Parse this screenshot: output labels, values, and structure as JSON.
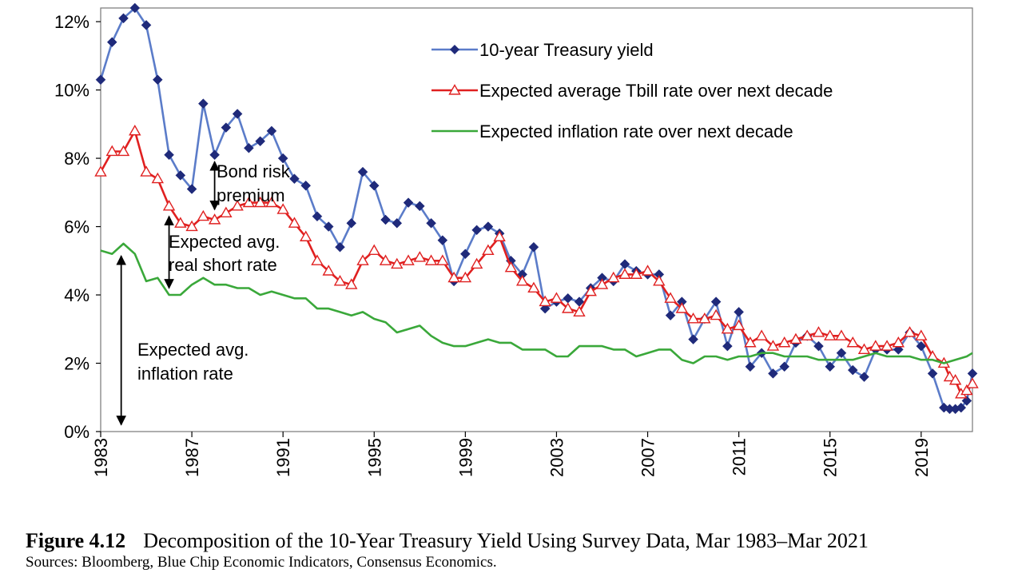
{
  "chart_data": {
    "type": "line",
    "ylim": [
      0,
      12.4
    ],
    "xlim": [
      1983.0,
      2021.25
    ],
    "y_ticks": [
      "0%",
      "2%",
      "4%",
      "6%",
      "8%",
      "10%",
      "12%"
    ],
    "x_ticks": [
      "1983",
      "1987",
      "1991",
      "1995",
      "1999",
      "2003",
      "2007",
      "2011",
      "2015",
      "2019"
    ],
    "legend_position": "top-right",
    "grid": false,
    "series": [
      {
        "name": "10-year Treasury yield",
        "color": "#5b7cc9",
        "marker": "diamond",
        "marker_color": "#1f2a7a",
        "x": [
          1983.0,
          1983.5,
          1984.0,
          1984.5,
          1985.0,
          1985.5,
          1986.0,
          1986.5,
          1987.0,
          1987.5,
          1988.0,
          1988.5,
          1989.0,
          1989.5,
          1990.0,
          1990.5,
          1991.0,
          1991.5,
          1992.0,
          1992.5,
          1993.0,
          1993.5,
          1994.0,
          1994.5,
          1995.0,
          1995.5,
          1996.0,
          1996.5,
          1997.0,
          1997.5,
          1998.0,
          1998.5,
          1999.0,
          1999.5,
          2000.0,
          2000.5,
          2001.0,
          2001.5,
          2002.0,
          2002.5,
          2003.0,
          2003.5,
          2004.0,
          2004.5,
          2005.0,
          2005.5,
          2006.0,
          2006.5,
          2007.0,
          2007.5,
          2008.0,
          2008.5,
          2009.0,
          2009.5,
          2010.0,
          2010.5,
          2011.0,
          2011.5,
          2012.0,
          2012.5,
          2013.0,
          2013.5,
          2014.0,
          2014.5,
          2015.0,
          2015.5,
          2016.0,
          2016.5,
          2017.0,
          2017.5,
          2018.0,
          2018.5,
          2019.0,
          2019.5,
          2020.0,
          2020.25,
          2020.5,
          2020.75,
          2021.0,
          2021.25
        ],
        "values": [
          10.3,
          11.4,
          12.1,
          12.4,
          11.9,
          10.3,
          8.1,
          7.5,
          7.1,
          9.6,
          8.1,
          8.9,
          9.3,
          8.3,
          8.5,
          8.8,
          8.0,
          7.4,
          7.2,
          6.3,
          6.0,
          5.4,
          6.1,
          7.6,
          7.2,
          6.2,
          6.1,
          6.7,
          6.6,
          6.1,
          5.6,
          4.4,
          5.2,
          5.9,
          6.0,
          5.8,
          5.0,
          4.6,
          5.4,
          3.6,
          3.8,
          3.9,
          3.8,
          4.2,
          4.5,
          4.4,
          4.9,
          4.7,
          4.6,
          4.6,
          3.4,
          3.8,
          2.7,
          3.3,
          3.8,
          2.5,
          3.5,
          1.9,
          2.3,
          1.7,
          1.9,
          2.6,
          2.8,
          2.5,
          1.9,
          2.3,
          1.8,
          1.6,
          2.4,
          2.4,
          2.4,
          2.9,
          2.5,
          1.7,
          0.7,
          0.66,
          0.66,
          0.7,
          0.9,
          1.7
        ]
      },
      {
        "name": "Expected average Tbill rate over next decade",
        "color": "#e02020",
        "marker": "triangle",
        "x": [
          1983.0,
          1983.5,
          1984.0,
          1984.5,
          1985.0,
          1985.5,
          1986.0,
          1986.5,
          1987.0,
          1987.5,
          1988.0,
          1988.5,
          1989.0,
          1989.5,
          1990.0,
          1990.5,
          1991.0,
          1991.5,
          1992.0,
          1992.5,
          1993.0,
          1993.5,
          1994.0,
          1994.5,
          1995.0,
          1995.5,
          1996.0,
          1996.5,
          1997.0,
          1997.5,
          1998.0,
          1998.5,
          1999.0,
          1999.5,
          2000.0,
          2000.5,
          2001.0,
          2001.5,
          2002.0,
          2002.5,
          2003.0,
          2003.5,
          2004.0,
          2004.5,
          2005.0,
          2005.5,
          2006.0,
          2006.5,
          2007.0,
          2007.5,
          2008.0,
          2008.5,
          2009.0,
          2009.5,
          2010.0,
          2010.5,
          2011.0,
          2011.5,
          2012.0,
          2012.5,
          2013.0,
          2013.5,
          2014.0,
          2014.5,
          2015.0,
          2015.5,
          2016.0,
          2016.5,
          2017.0,
          2017.5,
          2018.0,
          2018.5,
          2019.0,
          2019.5,
          2020.0,
          2020.25,
          2020.5,
          2020.75,
          2021.0,
          2021.25
        ],
        "values": [
          7.6,
          8.2,
          8.2,
          8.8,
          7.6,
          7.4,
          6.6,
          6.1,
          6.0,
          6.3,
          6.2,
          6.4,
          6.6,
          6.7,
          6.7,
          6.7,
          6.5,
          6.1,
          5.7,
          5.0,
          4.7,
          4.4,
          4.3,
          5.0,
          5.3,
          5.0,
          4.9,
          5.0,
          5.1,
          5.0,
          5.0,
          4.5,
          4.5,
          4.9,
          5.3,
          5.7,
          4.8,
          4.4,
          4.2,
          3.8,
          3.9,
          3.6,
          3.5,
          4.1,
          4.3,
          4.5,
          4.6,
          4.6,
          4.7,
          4.4,
          3.9,
          3.6,
          3.3,
          3.3,
          3.4,
          3.0,
          3.1,
          2.6,
          2.8,
          2.5,
          2.6,
          2.7,
          2.8,
          2.9,
          2.8,
          2.8,
          2.6,
          2.4,
          2.5,
          2.5,
          2.6,
          2.9,
          2.8,
          2.2,
          2.0,
          1.6,
          1.5,
          1.1,
          1.2,
          1.4
        ]
      },
      {
        "name": "Expected inflation rate over next decade",
        "color": "#3aa83a",
        "marker": "none",
        "x": [
          1983.0,
          1983.5,
          1984.0,
          1984.5,
          1985.0,
          1985.5,
          1986.0,
          1986.5,
          1987.0,
          1987.5,
          1988.0,
          1988.5,
          1989.0,
          1989.5,
          1990.0,
          1990.5,
          1991.0,
          1991.5,
          1992.0,
          1992.5,
          1993.0,
          1993.5,
          1994.0,
          1994.5,
          1995.0,
          1995.5,
          1996.0,
          1996.5,
          1997.0,
          1997.5,
          1998.0,
          1998.5,
          1999.0,
          1999.5,
          2000.0,
          2000.5,
          2001.0,
          2001.5,
          2002.0,
          2002.5,
          2003.0,
          2003.5,
          2004.0,
          2004.5,
          2005.0,
          2005.5,
          2006.0,
          2006.5,
          2007.0,
          2007.5,
          2008.0,
          2008.5,
          2009.0,
          2009.5,
          2010.0,
          2010.5,
          2011.0,
          2011.5,
          2012.0,
          2012.5,
          2013.0,
          2013.5,
          2014.0,
          2014.5,
          2015.0,
          2015.5,
          2016.0,
          2016.5,
          2017.0,
          2017.5,
          2018.0,
          2018.5,
          2019.0,
          2019.5,
          2020.0,
          2020.5,
          2021.0,
          2021.25
        ],
        "values": [
          5.3,
          5.2,
          5.5,
          5.2,
          4.4,
          4.5,
          4.0,
          4.0,
          4.3,
          4.5,
          4.3,
          4.3,
          4.2,
          4.2,
          4.0,
          4.1,
          4.0,
          3.9,
          3.9,
          3.6,
          3.6,
          3.5,
          3.4,
          3.5,
          3.3,
          3.2,
          2.9,
          3.0,
          3.1,
          2.8,
          2.6,
          2.5,
          2.5,
          2.6,
          2.7,
          2.6,
          2.6,
          2.4,
          2.4,
          2.4,
          2.2,
          2.2,
          2.5,
          2.5,
          2.5,
          2.4,
          2.4,
          2.2,
          2.3,
          2.4,
          2.4,
          2.1,
          2.0,
          2.2,
          2.2,
          2.1,
          2.2,
          2.2,
          2.3,
          2.3,
          2.2,
          2.2,
          2.2,
          2.1,
          2.1,
          2.1,
          2.1,
          2.2,
          2.3,
          2.2,
          2.2,
          2.2,
          2.1,
          2.1,
          2.0,
          2.1,
          2.2,
          2.3
        ]
      }
    ],
    "annotations": [
      {
        "text_lines": [
          "Bond risk",
          "premium"
        ],
        "arrow_from_year": 1988.0
      },
      {
        "text_lines": [
          "Expected avg.",
          "real short rate"
        ],
        "arrow_from_year": 1986.0
      },
      {
        "text_lines": [
          "Expected avg.",
          "inflation rate"
        ],
        "arrow_from_year": 1983.9
      }
    ]
  },
  "caption": {
    "figure_label": "Figure 4.12",
    "title": "Decomposition of the 10-Year Treasury Yield Using Survey Data, Mar 1983–Mar 2021",
    "sources": "Sources: Bloomberg, Blue Chip Economic Indicators, Consensus Economics."
  }
}
